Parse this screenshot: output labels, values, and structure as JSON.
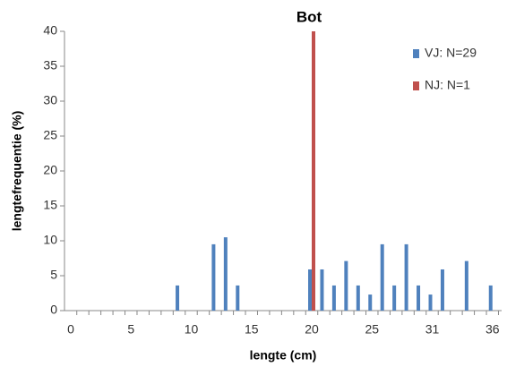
{
  "chart_data": {
    "type": "bar",
    "title": "Bot",
    "x_label": "lengte (cm)",
    "y_label": "lengtefrequentie (%)",
    "categories": [
      "0",
      null,
      null,
      null,
      null,
      "5",
      null,
      null,
      null,
      null,
      "10",
      null,
      null,
      null,
      null,
      "15",
      null,
      null,
      null,
      null,
      "20",
      null,
      null,
      null,
      null,
      "25",
      null,
      null,
      null,
      null,
      "31",
      null,
      null,
      null,
      null,
      "36"
    ],
    "series": [
      {
        "name": "VJ: N=29",
        "color": "#4f81bd",
        "values": [
          0,
          0,
          0,
          0,
          0,
          0,
          0,
          0,
          0,
          3.6,
          0,
          0,
          9.5,
          10.5,
          3.6,
          0,
          0,
          0,
          0,
          0,
          5.9,
          5.9,
          3.6,
          7.1,
          3.6,
          2.3,
          9.5,
          3.6,
          9.5,
          3.6,
          2.3,
          5.9,
          0,
          7.1,
          0,
          3.6
        ]
      },
      {
        "name": "NJ: N=1",
        "color": "#c0504d",
        "values": [
          0,
          0,
          0,
          0,
          0,
          0,
          0,
          0,
          0,
          0,
          0,
          0,
          0,
          0,
          0,
          0,
          0,
          0,
          0,
          0,
          40,
          0,
          0,
          0,
          0,
          0,
          0,
          0,
          0,
          0,
          0,
          0,
          0,
          0,
          0,
          0
        ]
      }
    ],
    "ylim": [
      0,
      40
    ],
    "yticks": [
      0,
      5,
      10,
      15,
      20,
      25,
      30,
      35,
      40
    ],
    "grid": false,
    "legend": "top-right"
  }
}
